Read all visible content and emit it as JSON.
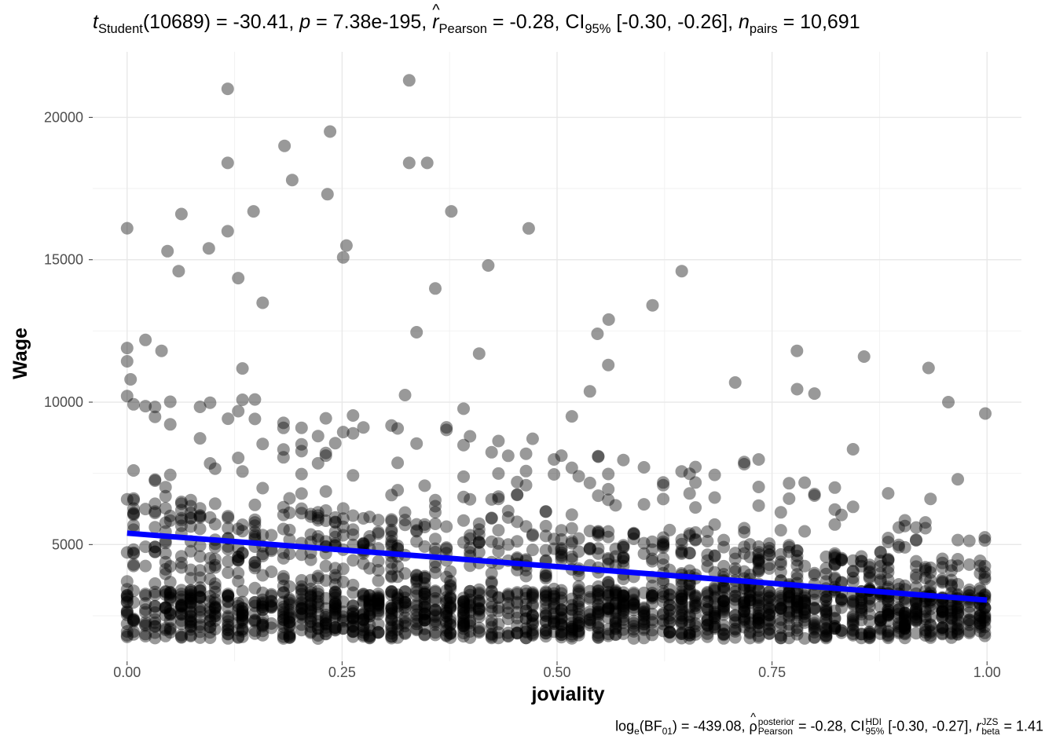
{
  "stats": {
    "subtitle": {
      "t_label": "t",
      "t_sub": "Student",
      "df": "(10689)",
      "t_value": " = -30.41, ",
      "p_label": "p",
      "p_value": " = 7.38e-195, ",
      "r_label": "r",
      "hat": "^",
      "r_sub": "Pearson",
      "r_value": " = -0.28, CI",
      "ci_sub": "95%",
      "ci_value": " [-0.30, -0.26], ",
      "n_label": "n",
      "n_sub": "pairs",
      "n_value": " = 10,691"
    },
    "caption": {
      "log": "log",
      "log_sub": "e",
      "bf_open": "(BF",
      "bf_sub": "01",
      "bf_value": ") = -439.08, ",
      "rho": "ρ",
      "hat": "^",
      "rho_sup": "posterior",
      "rho_sub": "Pearson",
      "rho_value": " = -0.28, CI",
      "ci_sup": "HDI",
      "ci_sub": "95%",
      "ci_value": " [-0.30, -0.27], ",
      "r_label": "r",
      "r_sup": "JZS",
      "r_sub": "beta",
      "r_value": " = 1.41"
    }
  },
  "chart_data": {
    "type": "scatter",
    "xlabel": "joviality",
    "ylabel": "Wage",
    "xlim": [
      -0.04,
      1.04
    ],
    "ylim": [
      900,
      22300
    ],
    "x_ticks": [
      "0.00",
      "0.25",
      "0.50",
      "0.75",
      "1.00"
    ],
    "y_ticks": [
      "5000",
      "10000",
      "15000",
      "20000"
    ],
    "grid": true,
    "n_points": 10691,
    "point_color": "#000000",
    "point_alpha": 0.4,
    "highlighted_points": [
      [
        0.117,
        21000
      ],
      [
        0.328,
        21300
      ],
      [
        0.236,
        19500
      ],
      [
        0.183,
        19000
      ],
      [
        0.117,
        18400
      ],
      [
        0.328,
        18400
      ],
      [
        0.349,
        18400
      ],
      [
        0.192,
        17800
      ],
      [
        0.233,
        17300
      ],
      [
        0.117,
        16000
      ],
      [
        0.467,
        16100
      ],
      [
        0.147,
        16700
      ],
      [
        0.377,
        16700
      ],
      [
        0.047,
        15300
      ],
      [
        0.095,
        15400
      ],
      [
        0.255,
        15500
      ],
      [
        0.645,
        14600
      ],
      [
        0.42,
        14800
      ],
      [
        0.06,
        14600
      ],
      [
        0.611,
        13400
      ],
      [
        0.779,
        11800
      ],
      [
        0.857,
        11600
      ],
      [
        0.932,
        11200
      ],
      [
        0.998,
        9600
      ],
      [
        0.955,
        10000
      ],
      [
        0.04,
        11800
      ],
      [
        0.0,
        11900
      ],
      [
        0.004,
        10800
      ],
      [
        0.547,
        12400
      ],
      [
        0.56,
        12900
      ]
    ],
    "trend_line": {
      "color": "#0000ff",
      "x": [
        0.0,
        1.0
      ],
      "y": [
        5400,
        3050
      ]
    }
  }
}
